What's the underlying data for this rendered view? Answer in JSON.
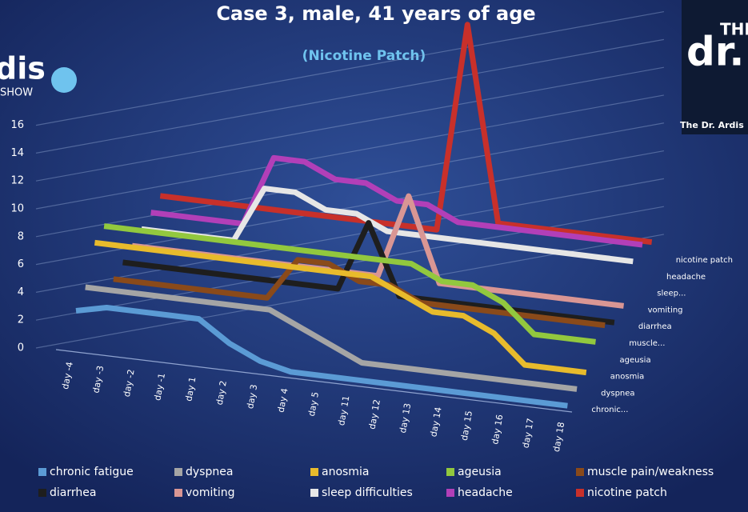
{
  "chart_data": {
    "type": "line3d",
    "title": "Case 3, male, 41 years of age",
    "subtitle": "(Nicotine Patch)",
    "categories": [
      "day -4",
      "day -3",
      "day -2",
      "day -1",
      "day 1",
      "day 2",
      "day 3",
      "day 4",
      "day 5",
      "day 11",
      "day 12",
      "day 13",
      "day 14",
      "day 15",
      "day 16",
      "day 17",
      "day 18"
    ],
    "series": [
      {
        "name": "chronic fatigue",
        "depth_label": "chronic...",
        "color": "#5b9bd5",
        "values": [
          2.5,
          3,
          3,
          3,
          3,
          1.5,
          0.5,
          0,
          0,
          0,
          0,
          0,
          0,
          0,
          0,
          0,
          0
        ]
      },
      {
        "name": "dyspnea",
        "depth_label": "dyspnea",
        "color": "#a5a5a5",
        "values": [
          3,
          3,
          3,
          3,
          3,
          3,
          3,
          2,
          1,
          0,
          0,
          0,
          0,
          0,
          0,
          0,
          0
        ]
      },
      {
        "name": "anosmia",
        "depth_label": "anosmia",
        "color": "#e8bb2c",
        "values": [
          5,
          5,
          5,
          5,
          5,
          5,
          5,
          5,
          5,
          5,
          4,
          3,
          3,
          2,
          0,
          0,
          0
        ]
      },
      {
        "name": "ageusia",
        "depth_label": "ageusia",
        "color": "#92c83e",
        "values": [
          5,
          5,
          5,
          5,
          5,
          5,
          5,
          5,
          5,
          5,
          5,
          4,
          4,
          3,
          1,
          1,
          1
        ]
      },
      {
        "name": "muscle pain/weakness",
        "depth_label": "muscle...",
        "color": "#8a4a1a",
        "values": [
          0,
          0,
          0,
          0,
          0,
          0,
          3,
          3,
          2,
          2,
          1,
          1,
          1,
          1,
          1,
          1,
          1
        ]
      },
      {
        "name": "diarrhea",
        "depth_label": "diarrhea",
        "color": "#1e1e1e",
        "values": [
          0,
          0,
          0,
          0,
          0,
          0,
          0,
          0,
          5,
          0,
          0,
          0,
          0,
          0,
          0,
          0,
          0
        ]
      },
      {
        "name": "vomiting",
        "depth_label": "vomiting",
        "color": "#d99694",
        "values": [
          0,
          0,
          0,
          0,
          0,
          0,
          0,
          0,
          0,
          6,
          0,
          0,
          0,
          0,
          0,
          0,
          0
        ]
      },
      {
        "name": "sleep difficulties",
        "depth_label": "sleep...",
        "color": "#e6e6e6",
        "values": [
          0,
          0,
          0,
          0,
          4,
          4,
          3,
          3,
          2,
          2,
          2,
          2,
          2,
          2,
          2,
          2,
          2
        ]
      },
      {
        "name": "headache",
        "depth_label": "headache",
        "color": "#b23fb8",
        "values": [
          0,
          0,
          0,
          0,
          5,
          5,
          4,
          4,
          3,
          3,
          2,
          2,
          2,
          2,
          2,
          2,
          2
        ]
      },
      {
        "name": "nicotine patch",
        "depth_label": "nicotine patch",
        "color": "#c8302a",
        "values": [
          0,
          0,
          0,
          0,
          0,
          0,
          0,
          0,
          0,
          0,
          15,
          1,
          1,
          1,
          1,
          1,
          1
        ]
      }
    ],
    "ylim": [
      0,
      16
    ],
    "yticks": [
      0,
      2,
      4,
      6,
      8,
      10,
      12,
      14,
      16
    ],
    "grid": true
  },
  "logo_left": {
    "line1": "dis",
    "line2": "SHOW"
  },
  "logo_right": {
    "line1": "THE",
    "line2": "dr.",
    "caption": "The Dr. Ardis"
  }
}
